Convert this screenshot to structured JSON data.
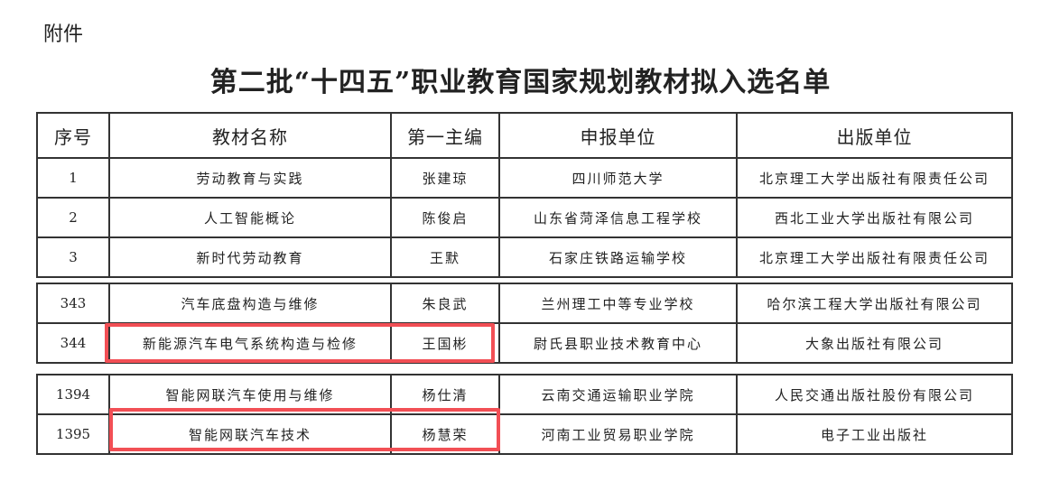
{
  "attachment_label": "附件",
  "title": "第二批“十四五”职业教育国家规划教材拟入选名单",
  "columns": [
    "序号",
    "教材名称",
    "第一主编",
    "申报单位",
    "出版单位"
  ],
  "segments": [
    [
      [
        "1",
        "劳动教育与实践",
        "张建琼",
        "四川师范大学",
        "北京理工大学出版社有限责任公司"
      ],
      [
        "2",
        "人工智能概论",
        "陈俊启",
        "山东省菏泽信息工程学校",
        "西北工业大学出版社有限公司"
      ],
      [
        "3",
        "新时代劳动教育",
        "王默",
        "石家庄铁路运输学校",
        "北京理工大学出版社有限责任公司"
      ]
    ],
    [
      [
        "343",
        "汽车底盘构造与维修",
        "朱良武",
        "兰州理工中等专业学校",
        "哈尔滨工程大学出版社有限公司"
      ],
      [
        "344",
        "新能源汽车电气系统构造与检修",
        "王国彬",
        "尉氏县职业技术教育中心",
        "大象出版社有限公司"
      ]
    ],
    [
      [
        "1394",
        "智能网联汽车使用与维修",
        "杨仕清",
        "云南交通运输职业学院",
        "人民交通出版社股份有限公司"
      ],
      [
        "1395",
        "智能网联汽车技术",
        "杨慧荣",
        "河南工业贸易职业学院",
        "电子工业出版社"
      ]
    ]
  ],
  "highlight_color": "#f24f55"
}
